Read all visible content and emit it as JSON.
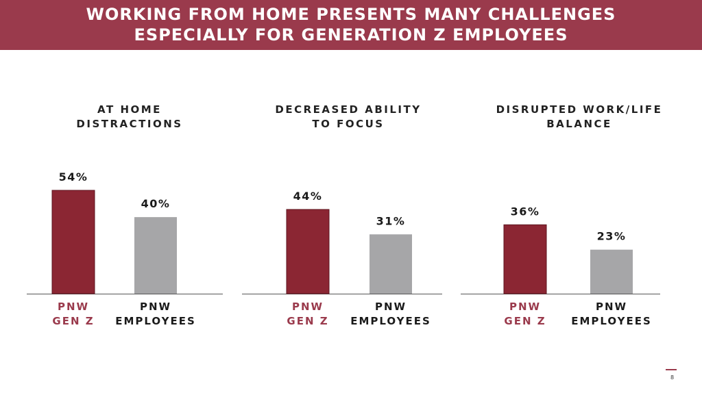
{
  "title": {
    "line1": "WORKING FROM HOME PRESENTS MANY CHALLENGES",
    "line2": "ESPECIALLY FOR GENERATION Z EMPLOYEES"
  },
  "page_number": "8",
  "colors": {
    "banner": "#9a3a4c",
    "genz": "#8b2633",
    "employees": "#a6a6a8",
    "genz_label": "#9a3a4c",
    "axis": "#555555"
  },
  "chart_data": [
    {
      "type": "bar",
      "title_lines": [
        "AT HOME",
        "DISTRACTIONS"
      ],
      "categories": [
        "PNW GEN Z",
        "PNW EMPLOYEES"
      ],
      "category_lines": [
        [
          "PNW",
          "GEN Z"
        ],
        [
          "PNW",
          "EMPLOYEES"
        ]
      ],
      "values": [
        54,
        40
      ],
      "value_labels": [
        "54%",
        "40%"
      ],
      "ylim": [
        0,
        60
      ]
    },
    {
      "type": "bar",
      "title_lines": [
        "DECREASED ABILITY",
        "TO FOCUS"
      ],
      "categories": [
        "PNW GEN Z",
        "PNW EMPLOYEES"
      ],
      "category_lines": [
        [
          "PNW",
          "GEN Z"
        ],
        [
          "PNW",
          "EMPLOYEES"
        ]
      ],
      "values": [
        44,
        31
      ],
      "value_labels": [
        "44%",
        "31%"
      ],
      "ylim": [
        0,
        60
      ]
    },
    {
      "type": "bar",
      "title_lines": [
        "DISRUPTED WORK/LIFE",
        "BALANCE"
      ],
      "categories": [
        "PNW GEN Z",
        "PNW EMPLOYEES"
      ],
      "category_lines": [
        [
          "PNW",
          "GEN Z"
        ],
        [
          "PNW",
          "EMPLOYEES"
        ]
      ],
      "values": [
        36,
        23
      ],
      "value_labels": [
        "36%",
        "23%"
      ],
      "ylim": [
        0,
        60
      ]
    }
  ]
}
